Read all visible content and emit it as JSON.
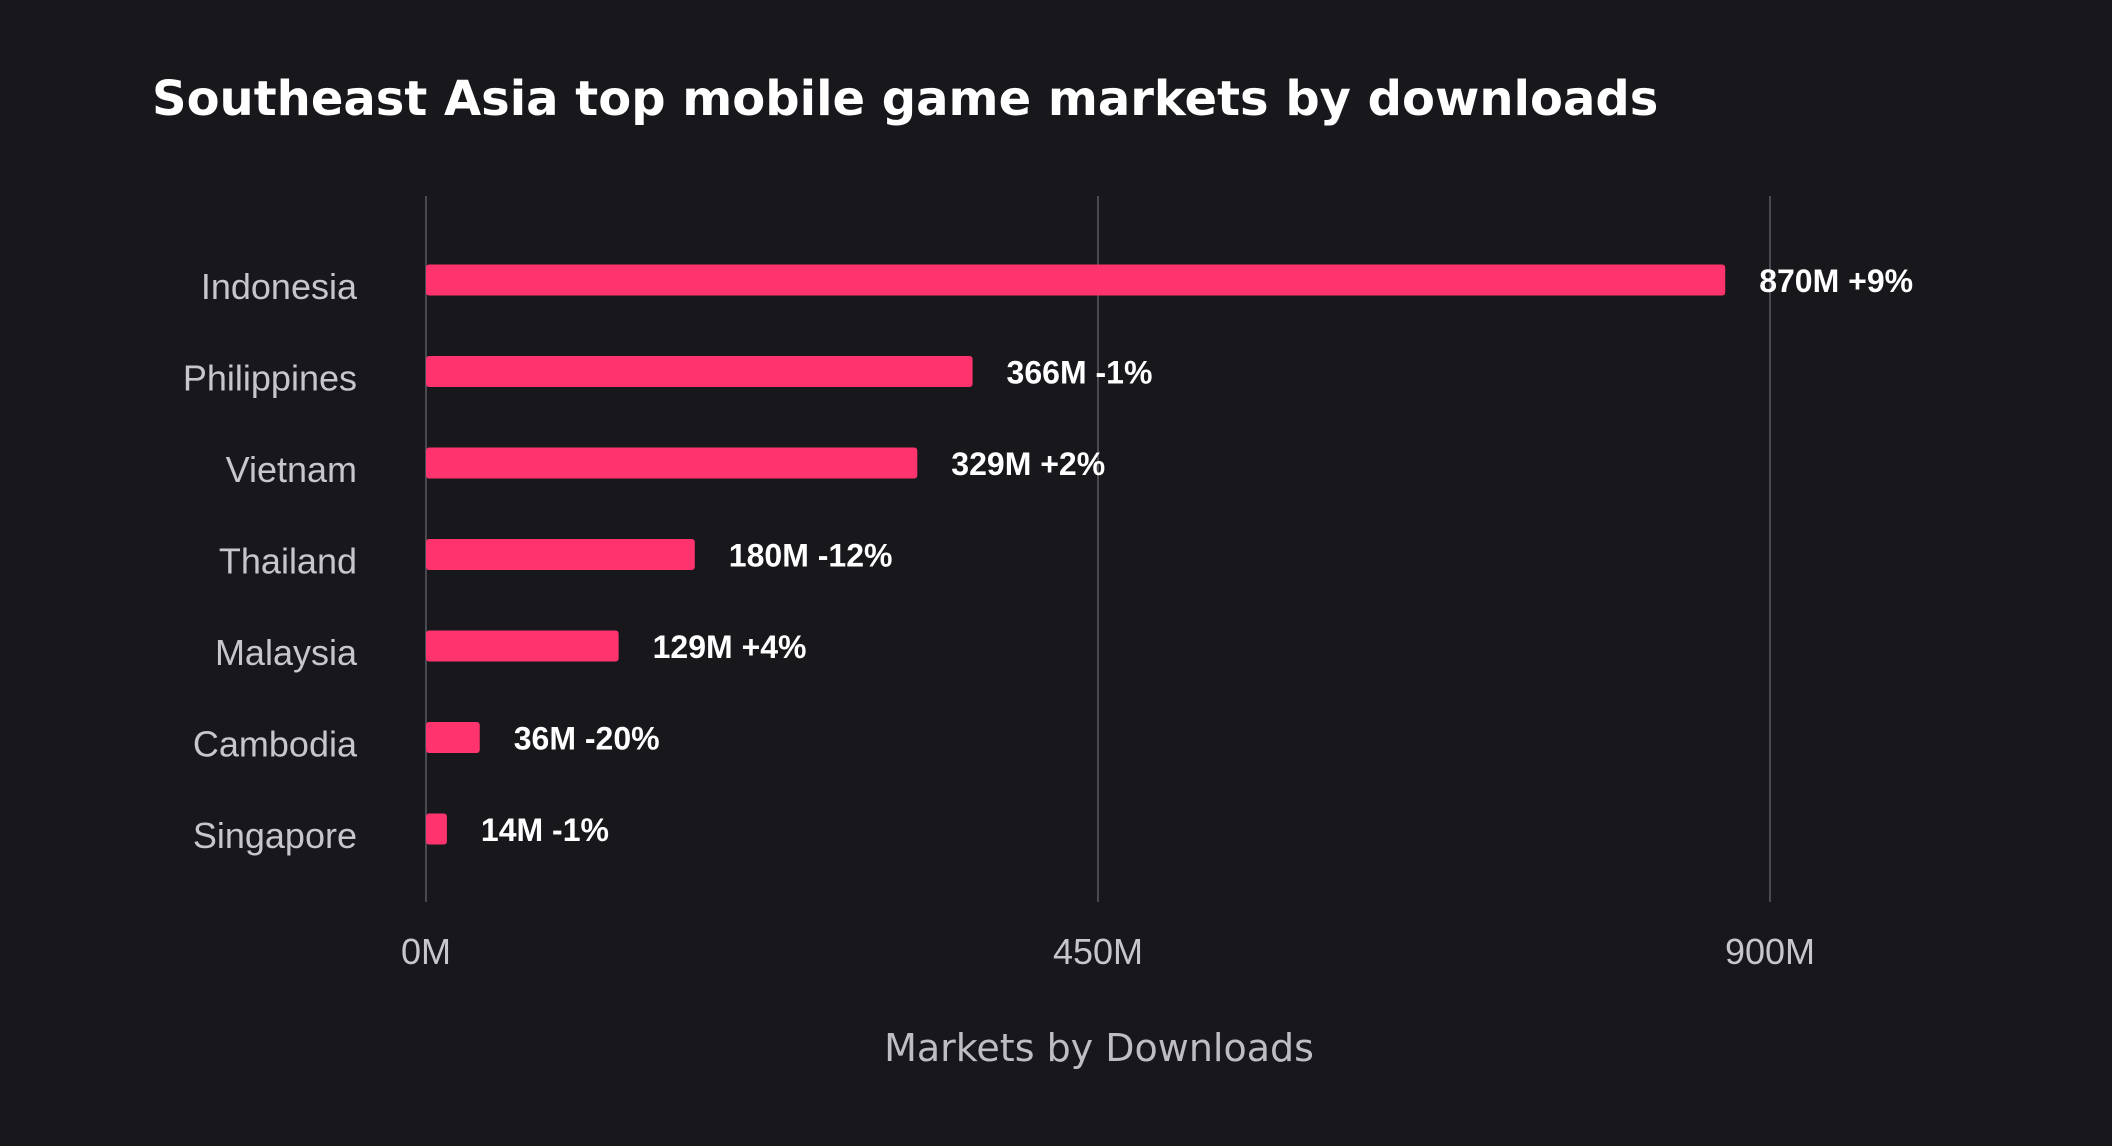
{
  "chart_data": {
    "type": "bar",
    "orientation": "horizontal",
    "title": "Southeast Asia top mobile game markets by downloads",
    "xlabel": "Markets by Downloads",
    "ylabel": "",
    "categories": [
      "Indonesia",
      "Philippines",
      "Vietnam",
      "Thailand",
      "Malaysia",
      "Cambodia",
      "Singapore"
    ],
    "values": [
      870,
      366,
      329,
      180,
      129,
      36,
      14
    ],
    "data_labels": [
      "870M +9%",
      "366M -1%",
      "329M +2%",
      "180M -12%",
      "129M +4%",
      "36M -20%",
      "14M -1%"
    ],
    "xlim": [
      0,
      900
    ],
    "x_ticks": [
      0,
      450,
      900
    ],
    "x_tick_labels": [
      "0M",
      "450M",
      "900M"
    ],
    "grid": "vertical",
    "legend": "none",
    "colors": {
      "bar": "#ff336e",
      "background": "#18181c",
      "grid": "#4a4a52"
    }
  }
}
